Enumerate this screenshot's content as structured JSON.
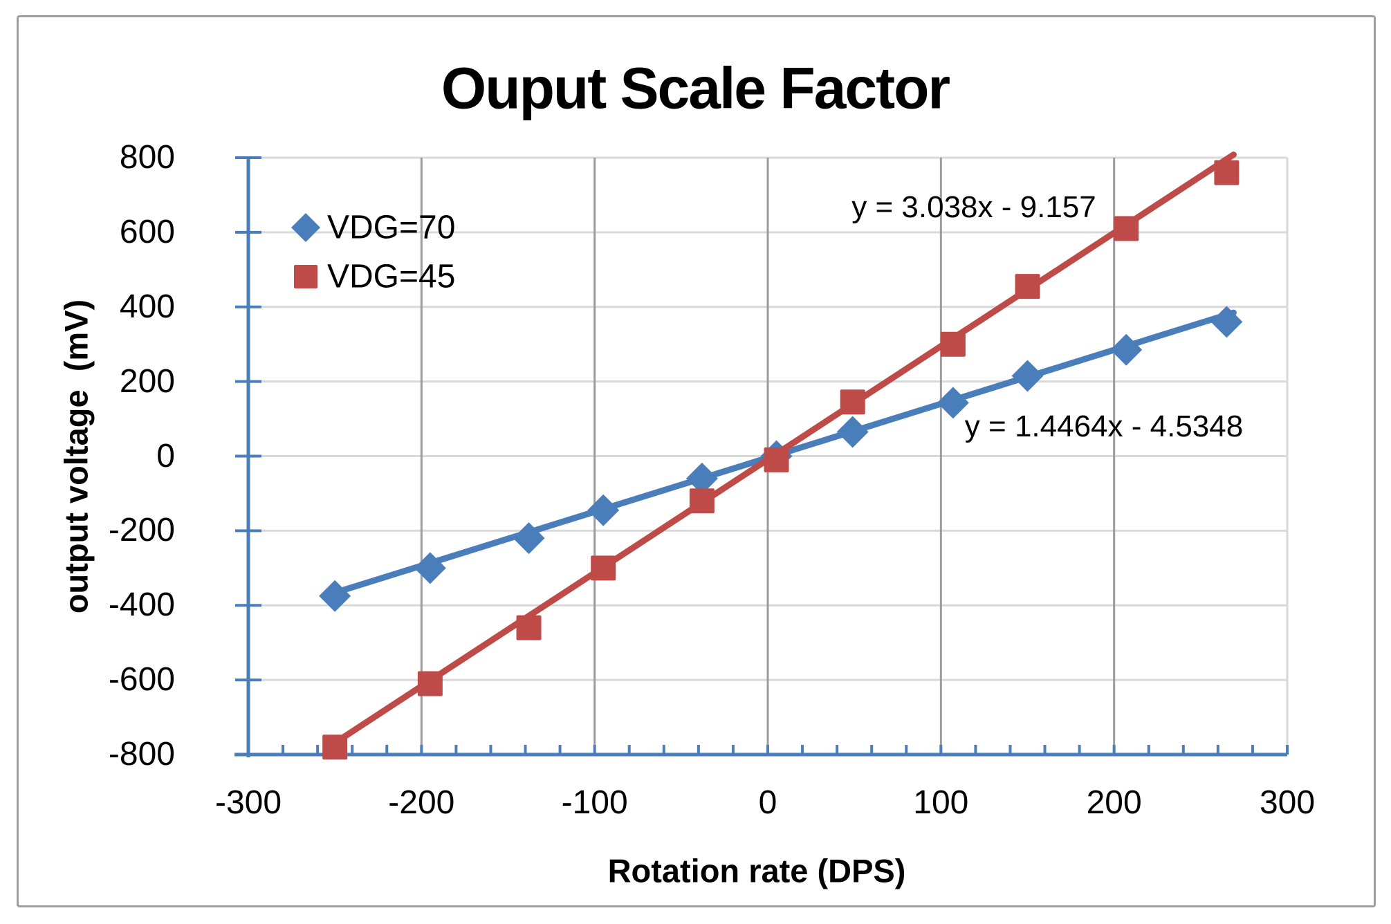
{
  "chart": {
    "title": "Ouput Scale Factor",
    "x_axis": {
      "label": "Rotation rate (DPS)",
      "min": -300,
      "max": 300,
      "tick_labels": [
        "-300",
        "-200",
        "-100",
        "0",
        "100",
        "200",
        "300"
      ],
      "minor_tick_step": 20,
      "major_gridlines": [
        -200,
        -100,
        0,
        100,
        200
      ]
    },
    "y_axis": {
      "label": "output voltage  (mV)",
      "min": -800,
      "max": 800,
      "tick_labels": [
        "800",
        "600",
        "400",
        "200",
        "0",
        "-200",
        "-400",
        "-600",
        "-800"
      ],
      "gridlines": [
        800,
        600,
        400,
        200,
        0,
        -200,
        -400,
        -600
      ]
    },
    "legend": {
      "items": [
        {
          "label": "VDG=70",
          "marker": "diamond",
          "color": "#4A7EBB"
        },
        {
          "label": "VDG=45",
          "marker": "square",
          "color": "#BE4B48"
        }
      ]
    }
  },
  "chart_data": {
    "type": "scatter",
    "title": "Ouput Scale Factor",
    "xlabel": "Rotation rate (DPS)",
    "ylabel": "output voltage (mV)",
    "xlim": [
      -300,
      300
    ],
    "ylim": [
      -800,
      800
    ],
    "grid": true,
    "legend_position": "upper-left-inside",
    "x": [
      -250,
      -195,
      -138,
      -95,
      -38,
      5,
      49,
      107,
      150,
      207,
      265
    ],
    "series": [
      {
        "name": "VDG=70",
        "marker": "diamond",
        "color": "#4A7EBB",
        "values": [
          -375,
          -300,
          -220,
          -145,
          -60,
          0,
          65,
          143,
          215,
          285,
          360
        ],
        "trendline": {
          "slope": 1.4464,
          "intercept": -4.5348,
          "equation": "y = 1.4464x - 4.5348",
          "x_range": [
            -253,
            269
          ]
        }
      },
      {
        "name": "VDG=45",
        "marker": "square",
        "color": "#BE4B48",
        "values": [
          -780,
          -610,
          -460,
          -300,
          -120,
          -10,
          145,
          300,
          455,
          610,
          760
        ],
        "trendline": {
          "slope": 3.038,
          "intercept": -9.157,
          "equation": "y = 3.038x - 9.157",
          "x_range": [
            -253,
            269
          ]
        }
      }
    ]
  },
  "colors": {
    "series_blue": "#4A7EBB",
    "series_red": "#BE4B48",
    "axis_line": "#4A7EBB",
    "gridline_horizontal": "#D9D9D9",
    "gridline_vertical": "#9c9c9c",
    "plot_border": "#D9D9D9",
    "outer_border": "#9e9e9e",
    "text": "#000000"
  }
}
